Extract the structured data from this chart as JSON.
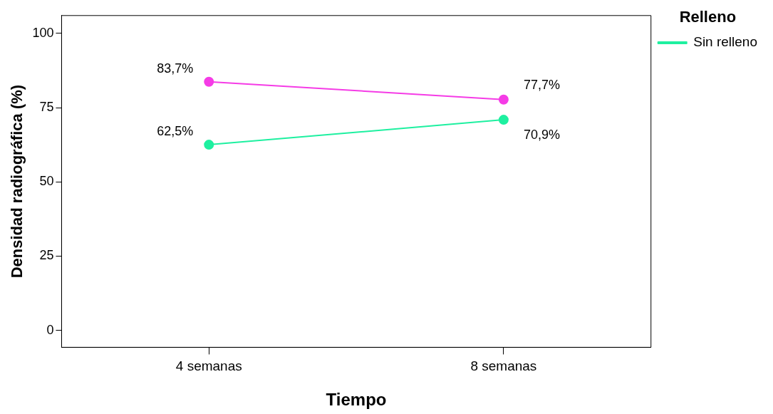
{
  "chart_data": {
    "type": "line",
    "xlabel": "Tiempo",
    "ylabel": "Densidad radiográfica (%)",
    "legend_title": "Relleno",
    "categories": [
      "4 semanas",
      "8 semanas"
    ],
    "series": [
      {
        "name": "Sin relleno",
        "color": "#1ef0a0",
        "values": [
          62.5,
          70.9
        ],
        "value_labels": [
          "62,5%",
          "70,9%"
        ]
      },
      {
        "color": "#f53ce6",
        "values": [
          83.7,
          77.7
        ],
        "value_labels": [
          "83,7%",
          "77,7%"
        ]
      }
    ],
    "ylim": [
      -5.7,
      106
    ],
    "yticks": [
      0,
      25,
      50,
      75,
      100
    ],
    "grid": false,
    "legend": "right",
    "marker": "circle",
    "line_style": "solid"
  }
}
